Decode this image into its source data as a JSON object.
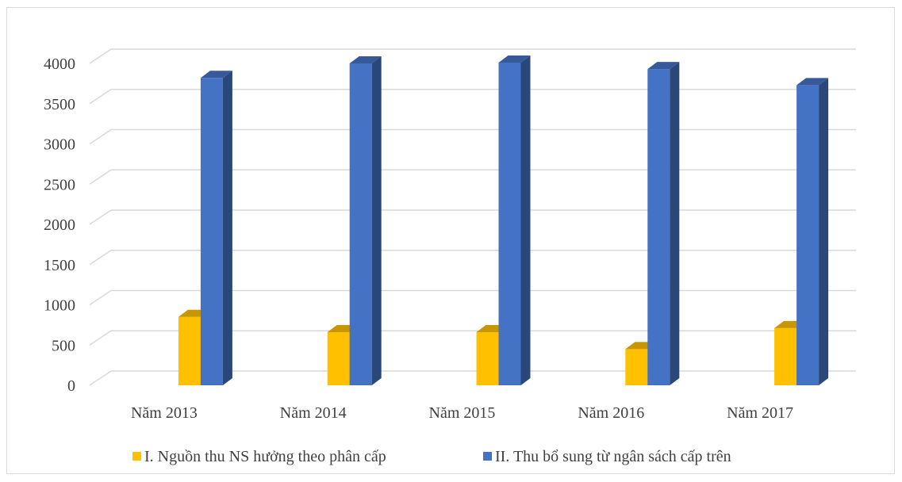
{
  "chart_data": {
    "type": "bar",
    "categories": [
      "Năm 2013",
      "Năm 2014",
      "Năm 2015",
      "Năm 2016",
      "Năm 2017"
    ],
    "series": [
      {
        "name": "I. Nguồn thu NS hưởng theo phân cấp",
        "color": "#FFC000",
        "values": [
          850,
          660,
          660,
          450,
          710
        ]
      },
      {
        "name": "II. Thu bổ sung từ ngân sách cấp trên",
        "color": "#4472C4",
        "values": [
          3820,
          4000,
          4010,
          3930,
          3730
        ]
      }
    ],
    "ylim": [
      0,
      4000
    ],
    "yticks": [
      0,
      500,
      1000,
      1500,
      2000,
      2500,
      3000,
      3500,
      4000
    ],
    "style": "3d-clustered-column",
    "grid": true,
    "legend": "bottom"
  }
}
